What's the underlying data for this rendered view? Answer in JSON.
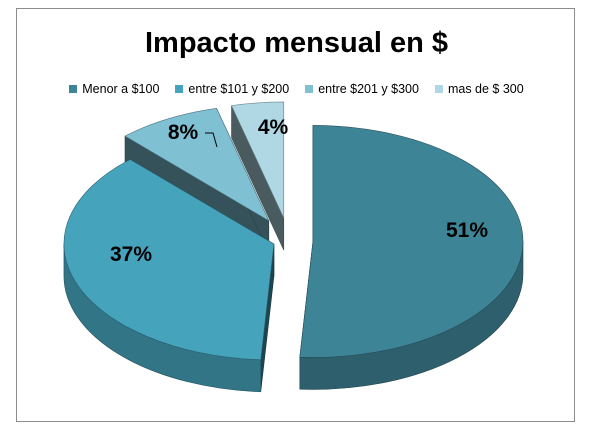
{
  "chart_data": {
    "type": "pie",
    "title": "Impacto mensual en $",
    "legend_position": "top",
    "categories": [
      "Menor a $100",
      "entre $101 y $200",
      "entre $201 y $300",
      "mas de $ 300"
    ],
    "values": [
      51,
      37,
      8,
      4
    ],
    "data_labels": [
      "51%",
      "37%",
      "8%",
      "4%"
    ],
    "colors": [
      "#3e8497",
      "#46a3bc",
      "#7fc0d3",
      "#b0d8e4"
    ],
    "exploded": true,
    "three_d": true
  }
}
